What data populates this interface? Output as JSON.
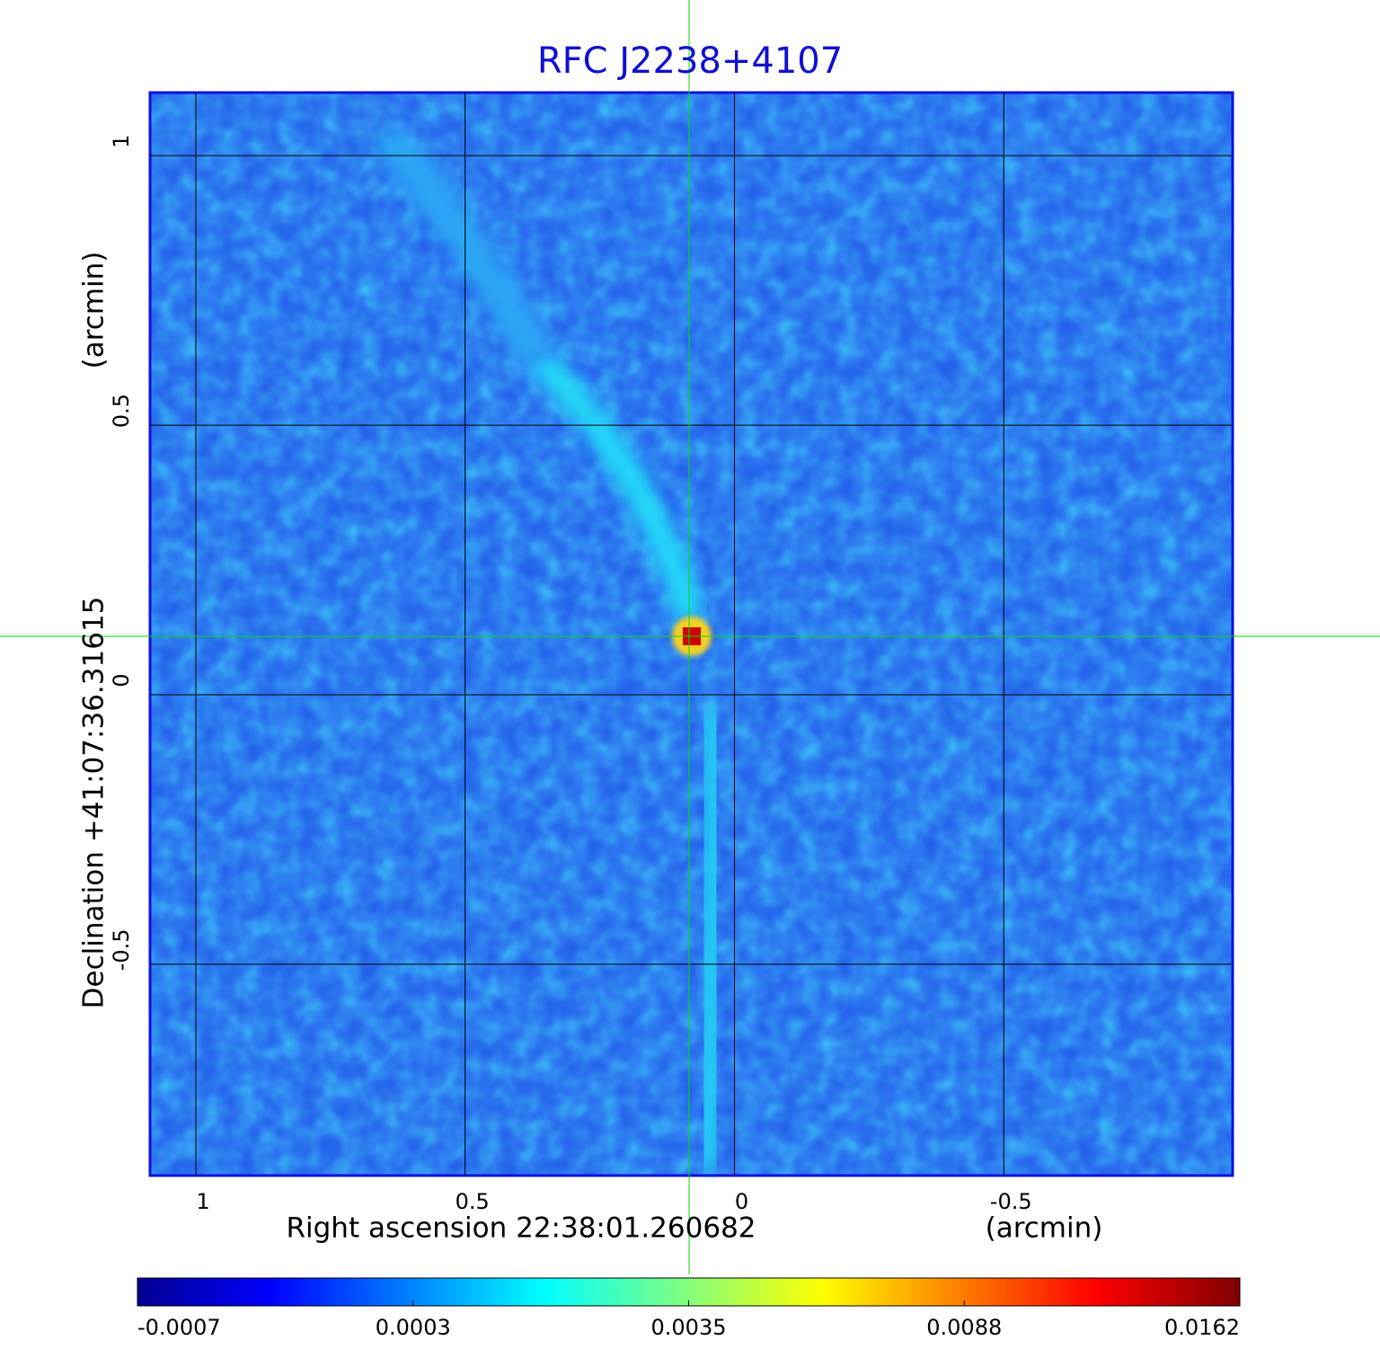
{
  "chart_data": {
    "type": "image",
    "title": "RFC J2238+4107",
    "x_label": "Right ascension  22:38:01.260682",
    "x_unit": "(arcmin)",
    "y_label": "Declination  +41:07:36.31615",
    "y_unit": "(arcmin)",
    "xlim": [
      1.085,
      -0.925
    ],
    "xticks": [
      1.0,
      0.5,
      0.0,
      -0.5
    ],
    "ylim": [
      -0.892,
      1.117
    ],
    "yticks": [
      -0.5,
      0.0,
      0.5,
      1.0
    ],
    "grid": true,
    "colormap": "jet",
    "colorbar_ticks": [
      -0.0007,
      0.0003,
      0.0035,
      0.0088,
      0.0162
    ]
  }
}
